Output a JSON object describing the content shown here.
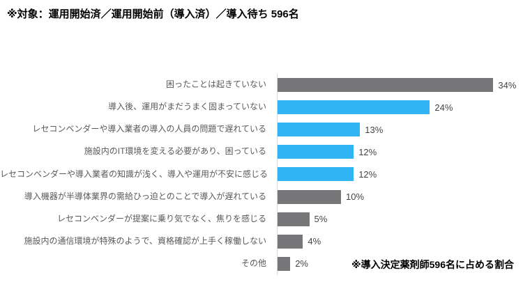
{
  "chart_data": {
    "type": "bar",
    "orientation": "horizontal",
    "title": "※対象：運用開始済／運用開始前（導入済）／導入待ち 596名",
    "footnote": "※導入決定薬剤師596名に占める割合",
    "unit": "%",
    "xlim": [
      0,
      38
    ],
    "grid": false,
    "legend": "none",
    "colors": {
      "gray": "#767679",
      "blue": "#30b4f4"
    },
    "items": [
      {
        "label": "困ったことは起きていない",
        "value": 34,
        "display": "34%",
        "color": "gray"
      },
      {
        "label": "導入後、運用がまだうまく固まっていない",
        "value": 24,
        "display": "24%",
        "color": "blue"
      },
      {
        "label": "レセコンベンダーや導入業者の導入の人員の問題で遅れている",
        "value": 13,
        "display": "13%",
        "color": "blue"
      },
      {
        "label": "施設内のIT環境を変える必要があり、困っている",
        "value": 12,
        "display": "12%",
        "color": "blue"
      },
      {
        "label": "レセコンベンダーや導入業者の知識が浅く、導入や運用が不安に感じる",
        "value": 12,
        "display": "12%",
        "color": "blue"
      },
      {
        "label": "導入機器が半導体業界の需給ひっ迫とのことで導入が遅れている",
        "value": 10,
        "display": "10%",
        "color": "gray"
      },
      {
        "label": "レセコンベンダーが提案に乗り気でなく、焦りを感じる",
        "value": 5,
        "display": "5%",
        "color": "gray"
      },
      {
        "label": "施設内の通信環境が特殊のようで、資格確認が上手く稼働しない",
        "value": 4,
        "display": "4%",
        "color": "gray"
      },
      {
        "label": "その他",
        "value": 2,
        "display": "2%",
        "color": "gray"
      }
    ]
  }
}
